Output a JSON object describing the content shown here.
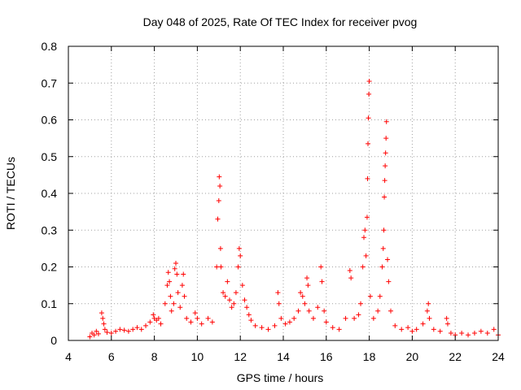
{
  "chart_data": {
    "type": "scatter",
    "title": "Day 048 of 2025, Rate Of TEC Index for receiver pvog",
    "xlabel": "GPS time / hours",
    "ylabel": "ROTI / TECUs",
    "xlim": [
      4,
      24
    ],
    "ylim": [
      0,
      0.8
    ],
    "xticks": [
      4,
      6,
      8,
      10,
      12,
      14,
      16,
      18,
      20,
      22,
      24
    ],
    "yticks": [
      0,
      0.1,
      0.2,
      0.3,
      0.4,
      0.5,
      0.6,
      0.7,
      0.8
    ],
    "grid": true,
    "marker": "+",
    "color": "#ff0000",
    "series": [
      {
        "name": "ROTI",
        "points": [
          [
            5.0,
            0.01
          ],
          [
            5.1,
            0.02
          ],
          [
            5.2,
            0.015
          ],
          [
            5.3,
            0.025
          ],
          [
            5.4,
            0.018
          ],
          [
            5.55,
            0.075
          ],
          [
            5.6,
            0.06
          ],
          [
            5.65,
            0.045
          ],
          [
            5.7,
            0.03
          ],
          [
            5.8,
            0.022
          ],
          [
            6.0,
            0.02
          ],
          [
            6.2,
            0.025
          ],
          [
            6.4,
            0.03
          ],
          [
            6.6,
            0.028
          ],
          [
            6.8,
            0.025
          ],
          [
            7.0,
            0.03
          ],
          [
            7.2,
            0.035
          ],
          [
            7.4,
            0.03
          ],
          [
            7.6,
            0.04
          ],
          [
            7.8,
            0.05
          ],
          [
            7.95,
            0.07
          ],
          [
            8.0,
            0.06
          ],
          [
            8.1,
            0.055
          ],
          [
            8.2,
            0.06
          ],
          [
            8.3,
            0.045
          ],
          [
            8.5,
            0.1
          ],
          [
            8.6,
            0.15
          ],
          [
            8.65,
            0.185
          ],
          [
            8.7,
            0.16
          ],
          [
            8.75,
            0.12
          ],
          [
            8.8,
            0.08
          ],
          [
            8.9,
            0.1
          ],
          [
            8.95,
            0.195
          ],
          [
            9.0,
            0.21
          ],
          [
            9.05,
            0.18
          ],
          [
            9.1,
            0.13
          ],
          [
            9.2,
            0.09
          ],
          [
            9.3,
            0.15
          ],
          [
            9.35,
            0.18
          ],
          [
            9.4,
            0.12
          ],
          [
            9.5,
            0.06
          ],
          [
            9.7,
            0.05
          ],
          [
            9.9,
            0.075
          ],
          [
            10.0,
            0.06
          ],
          [
            10.2,
            0.045
          ],
          [
            10.5,
            0.06
          ],
          [
            10.7,
            0.05
          ],
          [
            10.9,
            0.2
          ],
          [
            10.95,
            0.33
          ],
          [
            11.0,
            0.38
          ],
          [
            11.02,
            0.445
          ],
          [
            11.05,
            0.42
          ],
          [
            11.08,
            0.25
          ],
          [
            11.1,
            0.2
          ],
          [
            11.2,
            0.13
          ],
          [
            11.3,
            0.12
          ],
          [
            11.4,
            0.16
          ],
          [
            11.5,
            0.11
          ],
          [
            11.6,
            0.09
          ],
          [
            11.7,
            0.1
          ],
          [
            11.8,
            0.13
          ],
          [
            11.9,
            0.2
          ],
          [
            11.95,
            0.25
          ],
          [
            12.0,
            0.23
          ],
          [
            12.1,
            0.15
          ],
          [
            12.2,
            0.11
          ],
          [
            12.3,
            0.09
          ],
          [
            12.4,
            0.07
          ],
          [
            12.5,
            0.055
          ],
          [
            12.7,
            0.04
          ],
          [
            13.0,
            0.035
          ],
          [
            13.3,
            0.03
          ],
          [
            13.6,
            0.04
          ],
          [
            13.75,
            0.13
          ],
          [
            13.8,
            0.1
          ],
          [
            13.9,
            0.06
          ],
          [
            14.1,
            0.045
          ],
          [
            14.3,
            0.05
          ],
          [
            14.5,
            0.06
          ],
          [
            14.7,
            0.08
          ],
          [
            14.8,
            0.13
          ],
          [
            14.9,
            0.12
          ],
          [
            15.0,
            0.1
          ],
          [
            15.1,
            0.17
          ],
          [
            15.15,
            0.15
          ],
          [
            15.2,
            0.08
          ],
          [
            15.4,
            0.06
          ],
          [
            15.6,
            0.09
          ],
          [
            15.75,
            0.2
          ],
          [
            15.8,
            0.16
          ],
          [
            15.9,
            0.08
          ],
          [
            16.0,
            0.05
          ],
          [
            16.3,
            0.035
          ],
          [
            16.6,
            0.03
          ],
          [
            16.9,
            0.06
          ],
          [
            17.1,
            0.19
          ],
          [
            17.15,
            0.17
          ],
          [
            17.3,
            0.06
          ],
          [
            17.5,
            0.07
          ],
          [
            17.6,
            0.1
          ],
          [
            17.7,
            0.2
          ],
          [
            17.75,
            0.28
          ],
          [
            17.8,
            0.3
          ],
          [
            17.85,
            0.23
          ],
          [
            17.9,
            0.335
          ],
          [
            17.92,
            0.44
          ],
          [
            17.94,
            0.535
          ],
          [
            17.96,
            0.605
          ],
          [
            17.98,
            0.67
          ],
          [
            18.0,
            0.705
          ],
          [
            18.05,
            0.12
          ],
          [
            18.2,
            0.06
          ],
          [
            18.4,
            0.08
          ],
          [
            18.5,
            0.12
          ],
          [
            18.6,
            0.2
          ],
          [
            18.65,
            0.25
          ],
          [
            18.68,
            0.3
          ],
          [
            18.7,
            0.39
          ],
          [
            18.72,
            0.435
          ],
          [
            18.74,
            0.475
          ],
          [
            18.76,
            0.51
          ],
          [
            18.78,
            0.55
          ],
          [
            18.8,
            0.595
          ],
          [
            18.85,
            0.22
          ],
          [
            18.9,
            0.16
          ],
          [
            19.0,
            0.08
          ],
          [
            19.2,
            0.04
          ],
          [
            19.5,
            0.03
          ],
          [
            19.8,
            0.035
          ],
          [
            20.0,
            0.025
          ],
          [
            20.2,
            0.03
          ],
          [
            20.5,
            0.045
          ],
          [
            20.7,
            0.08
          ],
          [
            20.75,
            0.1
          ],
          [
            20.8,
            0.06
          ],
          [
            21.0,
            0.03
          ],
          [
            21.3,
            0.025
          ],
          [
            21.6,
            0.06
          ],
          [
            21.65,
            0.045
          ],
          [
            21.8,
            0.02
          ],
          [
            22.0,
            0.015
          ],
          [
            22.3,
            0.02
          ],
          [
            22.6,
            0.015
          ],
          [
            22.9,
            0.02
          ],
          [
            23.2,
            0.025
          ],
          [
            23.5,
            0.02
          ],
          [
            23.8,
            0.03
          ],
          [
            24.0,
            0.015
          ]
        ]
      }
    ]
  }
}
